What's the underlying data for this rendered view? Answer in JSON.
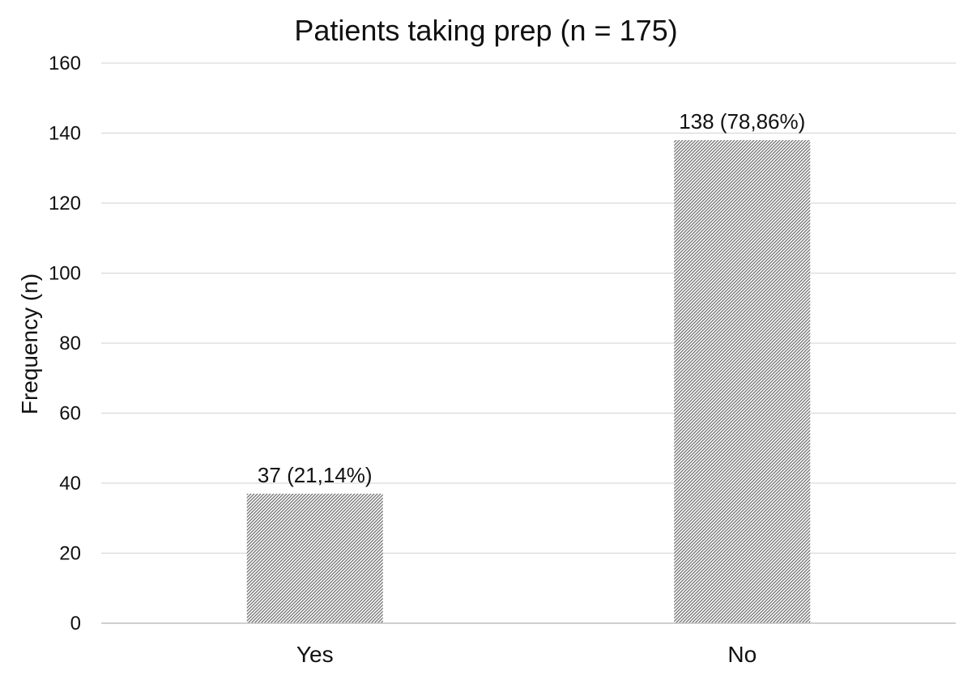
{
  "chart_data": {
    "type": "bar",
    "title": "Patients taking prep (n = 175)",
    "xlabel": "",
    "ylabel": "Frequency (n)",
    "categories": [
      "Yes",
      "No"
    ],
    "values": [
      37,
      138
    ],
    "data_labels": [
      "37 (21,14%)",
      "138 (78,86%)"
    ],
    "ylim": [
      0,
      160
    ],
    "yticks": [
      "0",
      "20",
      "40",
      "60",
      "80",
      "100",
      "120",
      "140",
      "160"
    ],
    "grid": true,
    "legend": "none",
    "bar_color": "#8a8a8a",
    "bar_pattern": "diagonal-hatch"
  }
}
